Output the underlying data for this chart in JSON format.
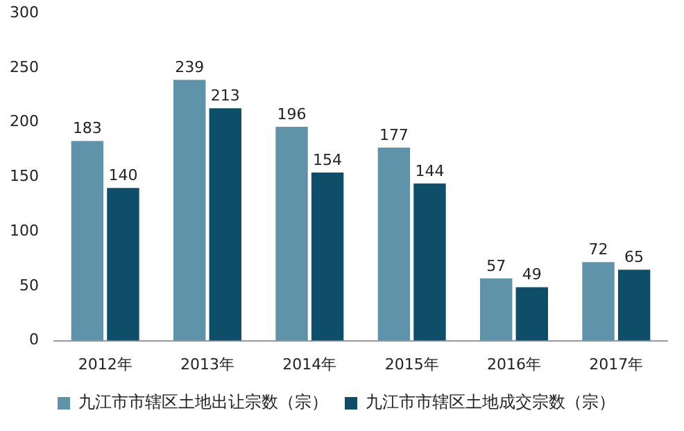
{
  "chart_data": {
    "type": "bar",
    "categories": [
      "2012年",
      "2013年",
      "2014年",
      "2015年",
      "2016年",
      "2017年"
    ],
    "series": [
      {
        "name": "九江市市辖区土地出让宗数（宗）",
        "color": "#5f93aa",
        "values": [
          183,
          239,
          196,
          177,
          57,
          72
        ]
      },
      {
        "name": "九江市市辖区土地成交宗数（宗）",
        "color": "#0e4e68",
        "values": [
          140,
          213,
          154,
          144,
          49,
          65
        ]
      }
    ],
    "ylim": [
      0,
      300
    ],
    "yticks": [
      0,
      50,
      100,
      150,
      200,
      250,
      300
    ],
    "grid": false,
    "legend": "bottom",
    "data_labels": true
  }
}
